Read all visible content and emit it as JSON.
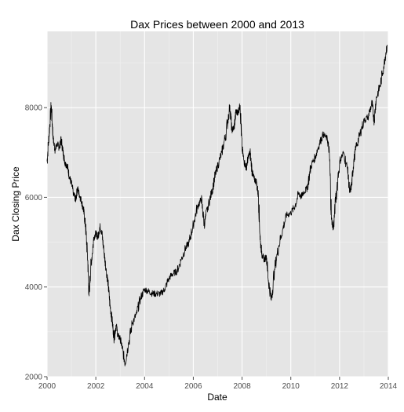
{
  "chart_data": {
    "type": "line",
    "title": "Dax Prices between 2000 and 2013",
    "xlabel": "Date",
    "ylabel": "Dax Closing Price",
    "xlim": [
      2000.0,
      2014.0
    ],
    "ylim": [
      2000,
      9700
    ],
    "x_ticks": [
      2000,
      2002,
      2004,
      2006,
      2008,
      2010,
      2012,
      2014
    ],
    "x_tick_labels": [
      "2000",
      "2002",
      "2004",
      "2006",
      "2008",
      "2010",
      "2012",
      "2014"
    ],
    "y_ticks": [
      2000,
      4000,
      6000,
      8000
    ],
    "y_tick_labels": [
      "2000",
      "4000",
      "6000",
      "8000"
    ],
    "grid": true,
    "background_color": "#e5e5e5",
    "line_color": "#000000",
    "series": [
      {
        "x": [
          2000.0,
          2000.08,
          2000.17,
          2000.25,
          2000.33,
          2000.42,
          2000.5,
          2000.58,
          2000.67,
          2000.75,
          2000.83,
          2000.92,
          2001.0,
          2001.08,
          2001.17,
          2001.25,
          2001.33,
          2001.42,
          2001.5,
          2001.58,
          2001.67,
          2001.72,
          2001.8,
          2001.92,
          2002.0,
          2002.08,
          2002.17,
          2002.25,
          2002.33,
          2002.42,
          2002.5,
          2002.58,
          2002.67,
          2002.75,
          2002.83,
          2002.92,
          2003.0,
          2003.08,
          2003.2,
          2003.33,
          2003.5,
          2003.67,
          2003.83,
          2004.0,
          2004.17,
          2004.33,
          2004.5,
          2004.67,
          2004.83,
          2005.0,
          2005.17,
          2005.33,
          2005.5,
          2005.67,
          2005.83,
          2006.0,
          2006.17,
          2006.33,
          2006.45,
          2006.6,
          2006.75,
          2006.9,
          2007.0,
          2007.17,
          2007.33,
          2007.5,
          2007.58,
          2007.67,
          2007.75,
          2007.83,
          2007.92,
          2008.0,
          2008.08,
          2008.17,
          2008.25,
          2008.33,
          2008.42,
          2008.5,
          2008.58,
          2008.67,
          2008.75,
          2008.83,
          2008.92,
          2009.0,
          2009.08,
          2009.2,
          2009.33,
          2009.5,
          2009.67,
          2009.83,
          2010.0,
          2010.17,
          2010.33,
          2010.42,
          2010.5,
          2010.67,
          2010.83,
          2011.0,
          2011.17,
          2011.33,
          2011.5,
          2011.58,
          2011.67,
          2011.75,
          2011.83,
          2012.0,
          2012.17,
          2012.33,
          2012.42,
          2012.5,
          2012.58,
          2012.67,
          2012.83,
          2013.0,
          2013.17,
          2013.33,
          2013.42,
          2013.5,
          2013.67,
          2013.83,
          2013.95
        ],
        "y": [
          6800,
          7400,
          8050,
          7300,
          7050,
          7200,
          7100,
          7300,
          6950,
          6750,
          6700,
          6450,
          6300,
          6100,
          5950,
          6200,
          6050,
          5900,
          5700,
          5350,
          4600,
          3800,
          4500,
          5100,
          5200,
          5100,
          5350,
          5200,
          4800,
          4400,
          4100,
          3600,
          3250,
          2850,
          3150,
          2900,
          2850,
          2650,
          2300,
          2700,
          3200,
          3400,
          3750,
          3950,
          3900,
          3850,
          3850,
          3850,
          3950,
          4200,
          4300,
          4350,
          4600,
          4850,
          5000,
          5400,
          5800,
          5950,
          5400,
          5800,
          6100,
          6500,
          6700,
          7000,
          7400,
          8050,
          7500,
          7550,
          7900,
          7900,
          8050,
          7100,
          6800,
          6650,
          6900,
          7000,
          6550,
          6400,
          6350,
          6050,
          5000,
          4700,
          4600,
          4700,
          4150,
          3700,
          4400,
          4900,
          5300,
          5600,
          5650,
          5800,
          6100,
          6000,
          6100,
          6200,
          6700,
          6900,
          7200,
          7400,
          7300,
          7000,
          5500,
          5300,
          5900,
          6800,
          7000,
          6600,
          6100,
          6300,
          6800,
          7100,
          7400,
          7700,
          7800,
          8100,
          7700,
          8200,
          8500,
          9000,
          9400
        ]
      }
    ]
  }
}
